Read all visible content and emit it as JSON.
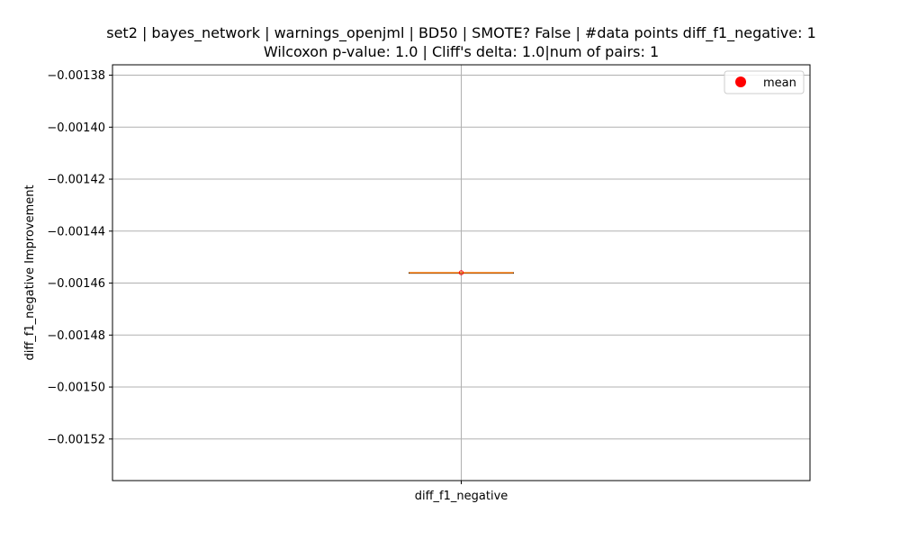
{
  "chart_data": {
    "type": "box",
    "title_line1": "set2 | bayes_network | warnings_openjml | BD50 | SMOTE? False | #data points diff_f1_negative: 1",
    "title_line2": "Wilcoxon p-value: 1.0 | Cliff's delta: 1.0|num of pairs: 1",
    "xlabel": "",
    "ylabel": "diff_f1_negative Improvement",
    "categories": [
      "diff_f1_negative"
    ],
    "y_ticks": [
      -0.00138,
      -0.0014,
      -0.00142,
      -0.00144,
      -0.00146,
      -0.00148,
      -0.0015,
      -0.00152
    ],
    "y_tick_labels": [
      "−0.00138",
      "−0.00140",
      "−0.00142",
      "−0.00144",
      "−0.00146",
      "−0.00148",
      "−0.00150",
      "−0.00152"
    ],
    "ylim": [
      -0.001536,
      -0.001376
    ],
    "grid": true,
    "legend": {
      "placement": "top-right",
      "entries": [
        {
          "label": "mean",
          "color": "#ff0000",
          "marker": "circle"
        }
      ]
    },
    "box": {
      "min": -0.001456,
      "q1": -0.001456,
      "median": -0.001456,
      "q3": -0.001456,
      "max": -0.001456,
      "mean": -0.001456
    },
    "colors": {
      "median": "#ff7f0e",
      "mean": "#ff0000",
      "box": "#000000",
      "grid": "#b0b0b0"
    }
  }
}
